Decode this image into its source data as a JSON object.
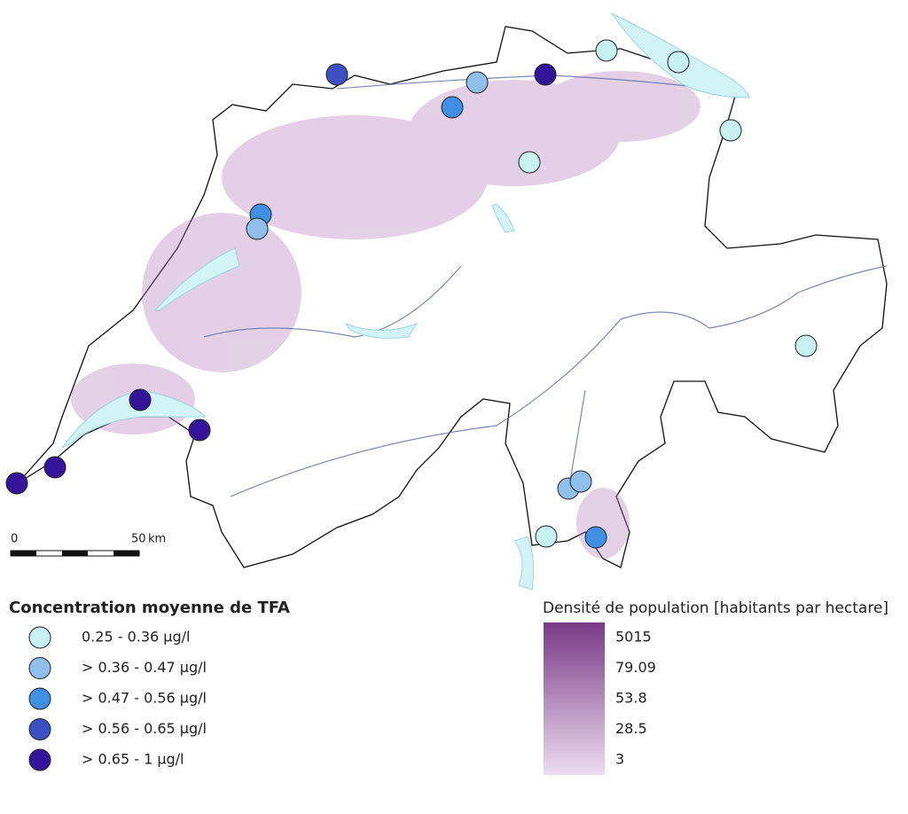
{
  "legend": {
    "title": "Concentration moyenne de TFA",
    "items": [
      {
        "label": "0.25 - 0.36 µg/l",
        "color": "#c8f1f1"
      },
      {
        "label": "> 0.36 - 0.47 µg/l",
        "color": "#8fbfea"
      },
      {
        "label": "> 0.47 - 0.56 µg/l",
        "color": "#3f8fe2"
      },
      {
        "label": "> 0.56 - 0.65 µg/l",
        "color": "#3c50c6"
      },
      {
        "label": "> 0.65 - 1 µg/l",
        "color": "#34149b"
      }
    ]
  },
  "density": {
    "title": "Densité de population [habitants par hectare]",
    "labels": [
      "5015",
      "79.09",
      "53.8",
      "28.5",
      "3"
    ],
    "colors": [
      "#7a3a86",
      "#ecdcf0"
    ]
  },
  "scale": {
    "start": "0",
    "end": "50",
    "unit": "km"
  }
}
